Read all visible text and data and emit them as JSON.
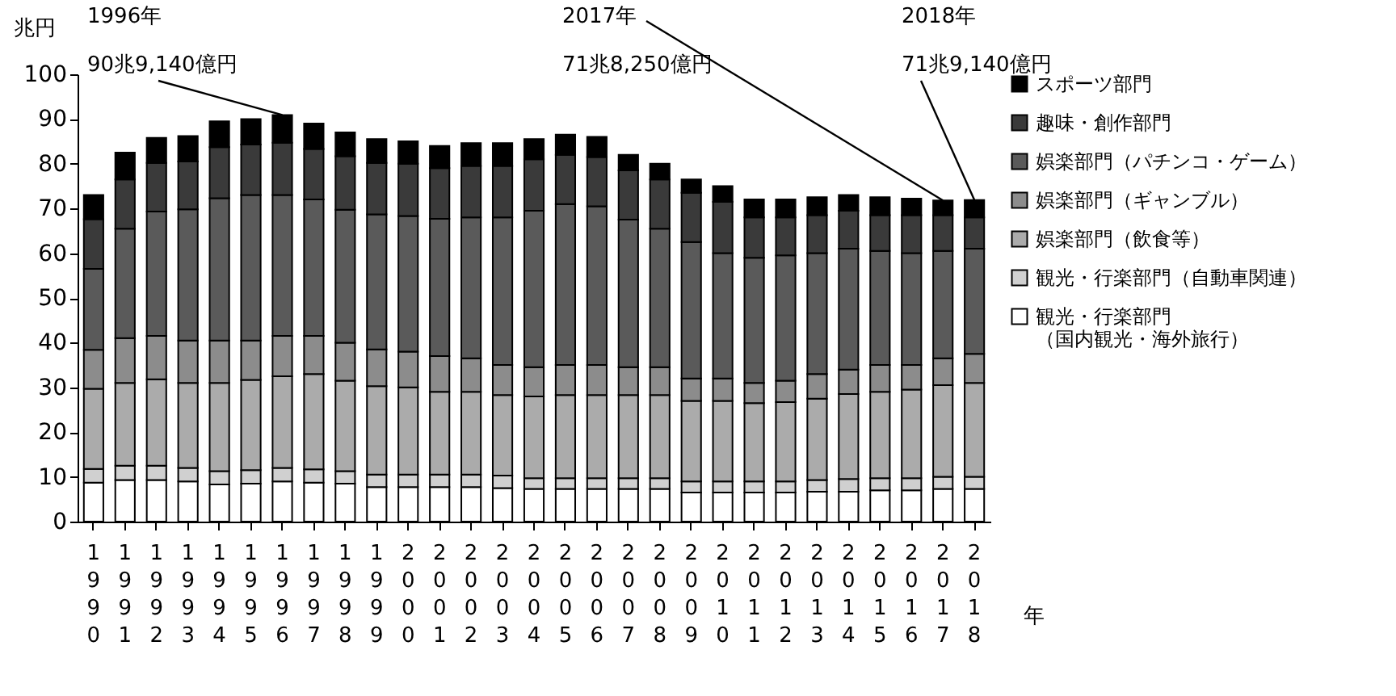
{
  "chart_data": {
    "type": "bar",
    "stacked": true,
    "ylabel": "兆円",
    "xlabel": "年",
    "categories": [
      "1990",
      "1991",
      "1992",
      "1993",
      "1994",
      "1995",
      "1996",
      "1997",
      "1998",
      "1999",
      "2000",
      "2001",
      "2002",
      "2003",
      "2004",
      "2005",
      "2006",
      "2007",
      "2008",
      "2009",
      "2010",
      "2011",
      "2012",
      "2013",
      "2014",
      "2015",
      "2016",
      "2017",
      "2018"
    ],
    "ylim": [
      0,
      100
    ],
    "yticks": [
      0,
      10,
      20,
      30,
      40,
      50,
      60,
      70,
      80,
      90,
      100
    ],
    "grid": false,
    "legend": "right",
    "series": [
      {
        "name": "観光・行楽部門（国内観光・海外旅行）",
        "color": "#ffffff",
        "values": [
          8.7,
          9.3,
          9.3,
          9,
          8.3,
          8.5,
          9,
          8.7,
          8.5,
          7.7,
          7.7,
          7.7,
          7.7,
          7.5,
          7.3,
          7.3,
          7.3,
          7.3,
          7.3,
          6.5,
          6.5,
          6.5,
          6.5,
          6.7,
          6.7,
          7,
          7,
          7.3,
          7.3
        ]
      },
      {
        "name": "観光・行楽部門（自動車関連）",
        "color": "#d0d0d0",
        "values": [
          3.1,
          3.2,
          3.2,
          3,
          3,
          3,
          3,
          3,
          2.8,
          2.8,
          2.8,
          2.8,
          2.8,
          2.8,
          2.4,
          2.4,
          2.4,
          2.4,
          2.4,
          2.5,
          2.5,
          2.5,
          2.5,
          2.6,
          2.8,
          2.7,
          2.7,
          2.7,
          2.7
        ]
      },
      {
        "name": "娯楽部門（飲食等）",
        "color": "#ababab",
        "values": [
          17.9,
          18.5,
          19.3,
          19,
          19.7,
          20.2,
          20.5,
          21.3,
          20.2,
          19.8,
          19.5,
          18.5,
          18.5,
          18,
          18.3,
          18.6,
          18.6,
          18.6,
          18.6,
          18,
          18,
          17.5,
          17.7,
          18.2,
          19,
          19.3,
          19.8,
          20.5,
          21
        ]
      },
      {
        "name": "娯楽部門（ギャンブル）",
        "color": "#8c8c8c",
        "values": [
          8.7,
          10,
          9.7,
          9.5,
          9.5,
          8.8,
          9,
          8.5,
          8.5,
          8.2,
          8,
          8,
          7.5,
          6.7,
          6.5,
          6.7,
          6.7,
          6.2,
          6.2,
          5,
          5,
          4.5,
          4.8,
          5.5,
          5.5,
          6,
          5.5,
          6,
          6.5
        ]
      },
      {
        "name": "娯楽部門（パチンコ・ゲーム）",
        "color": "#5a5a5a",
        "values": [
          18.1,
          24.5,
          27.8,
          29.3,
          31.8,
          32.5,
          31.5,
          30.5,
          29.7,
          30.2,
          30.3,
          30.7,
          31.5,
          33,
          35,
          36,
          35.5,
          33,
          31,
          30.5,
          28,
          28,
          28,
          27,
          27,
          25.5,
          25,
          24,
          23.5
        ]
      },
      {
        "name": "趣味・創作部門",
        "color": "#3a3a3a",
        "values": [
          11.1,
          11,
          10.9,
          10.7,
          11.4,
          11.3,
          11.7,
          11.3,
          12,
          11.5,
          11.7,
          11.3,
          11.5,
          11.5,
          11.5,
          11,
          11,
          11,
          11,
          11,
          11.5,
          9,
          8.5,
          8.5,
          8.5,
          8,
          8.5,
          8,
          7
        ]
      },
      {
        "name": "スポーツ部門",
        "color": "#000000",
        "values": [
          5.4,
          6,
          5.6,
          5.7,
          5.8,
          5.7,
          6.2,
          5.7,
          5.3,
          5.3,
          5,
          5,
          5.1,
          5.1,
          4.5,
          4.5,
          4.5,
          3.5,
          3.5,
          3,
          3.5,
          4,
          4,
          4,
          3.5,
          4,
          3.7,
          3.3,
          3.9
        ]
      }
    ],
    "annotations": [
      {
        "text": "1996年\n90兆9,140億円",
        "x": "1996",
        "y": 90.9
      },
      {
        "text": "2017年\n71兆8,250億円",
        "x": "2017",
        "y": 71.8
      },
      {
        "text": "2018年\n71兆9,140億円",
        "x": "2018",
        "y": 71.9
      }
    ]
  }
}
